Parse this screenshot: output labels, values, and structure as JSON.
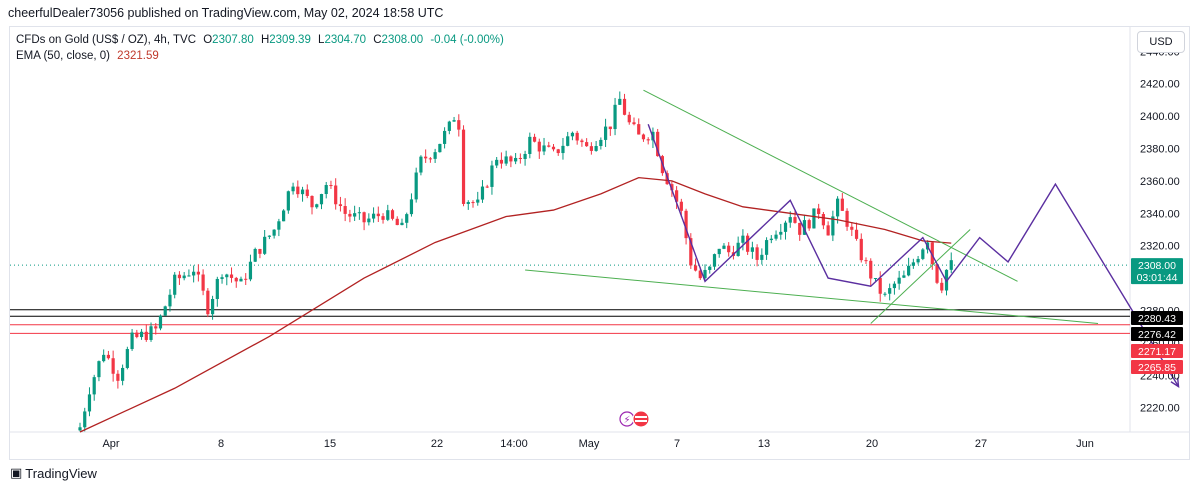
{
  "header": {
    "caption": "cheerfulDealer73056 published on TradingView.com, May 02, 2024 18:58 UTC"
  },
  "legend": {
    "symbol": "CFDs on Gold (US$ / OZ), 4h, TVC",
    "open_key": "O",
    "open": "2307.80",
    "high_key": "H",
    "high": "2309.39",
    "low_key": "L",
    "low": "2304.70",
    "close_key": "C",
    "close": "2308.00",
    "change": "-0.04 (-0.00%)",
    "ema_label": "EMA (50, close, 0)",
    "ema_value": "2321.59"
  },
  "price_axis": {
    "currency": "USD"
  },
  "colors": {
    "up": "#089981",
    "down": "#f23645",
    "ema": "#b22222",
    "trendline": "#4caf50",
    "projection": "#5b2fa0",
    "level_black": "#000000",
    "level_red": "#f23645",
    "price_badge": "#089981"
  },
  "chart_data": {
    "type": "candlestick",
    "symbol": "CFDs on Gold (US$ / OZ)",
    "interval": "4h",
    "ylim": [
      2205,
      2455
    ],
    "y_ticks": [
      2220,
      2240,
      2260,
      2280,
      2300,
      2320,
      2340,
      2360,
      2380,
      2400,
      2420,
      2440
    ],
    "x_ticks": [
      "Apr",
      "8",
      "15",
      "22",
      "14:00",
      "May",
      "7",
      "13",
      "20",
      "27",
      "Jun"
    ],
    "current_price": "2308.00",
    "countdown": "03:01:44",
    "levels": [
      {
        "value": 2280.43,
        "label": "2280.43",
        "color": "black"
      },
      {
        "value": 2276.42,
        "label": "2276.42",
        "color": "black"
      },
      {
        "value": 2271.17,
        "label": "2271.17",
        "color": "red"
      },
      {
        "value": 2265.85,
        "label": "2265.85",
        "color": "red"
      }
    ],
    "waypoints": [
      [
        0,
        2208
      ],
      [
        2,
        2232
      ],
      [
        5,
        2255
      ],
      [
        8,
        2240
      ],
      [
        11,
        2262
      ],
      [
        16,
        2268
      ],
      [
        20,
        2298
      ],
      [
        24,
        2306
      ],
      [
        27,
        2282
      ],
      [
        30,
        2305
      ],
      [
        34,
        2296
      ],
      [
        37,
        2315
      ],
      [
        41,
        2330
      ],
      [
        45,
        2360
      ],
      [
        49,
        2345
      ],
      [
        52,
        2358
      ],
      [
        56,
        2340
      ],
      [
        60,
        2335
      ],
      [
        64,
        2340
      ],
      [
        68,
        2330
      ],
      [
        72,
        2372
      ],
      [
        75,
        2380
      ],
      [
        78,
        2393
      ],
      [
        79,
        2400
      ],
      [
        80,
        2395
      ],
      [
        81,
        2350
      ],
      [
        84,
        2345
      ],
      [
        88,
        2375
      ],
      [
        92,
        2370
      ],
      [
        95,
        2385
      ],
      [
        100,
        2376
      ],
      [
        104,
        2390
      ],
      [
        107,
        2380
      ],
      [
        112,
        2395
      ],
      [
        114,
        2410
      ],
      [
        116,
        2395
      ],
      [
        118,
        2387
      ],
      [
        121,
        2390
      ],
      [
        123,
        2368
      ],
      [
        125,
        2355
      ],
      [
        127,
        2340
      ],
      [
        129,
        2310
      ],
      [
        131,
        2300
      ],
      [
        133,
        2305
      ],
      [
        135,
        2320
      ],
      [
        137,
        2316
      ],
      [
        140,
        2322
      ],
      [
        143,
        2312
      ],
      [
        146,
        2328
      ],
      [
        148,
        2333
      ],
      [
        150,
        2340
      ],
      [
        152,
        2330
      ],
      [
        154,
        2335
      ],
      [
        156,
        2342
      ],
      [
        158,
        2330
      ],
      [
        160,
        2345
      ],
      [
        162,
        2335
      ],
      [
        164,
        2320
      ],
      [
        166,
        2308
      ],
      [
        168,
        2296
      ],
      [
        170,
        2288
      ],
      [
        172,
        2296
      ],
      [
        174,
        2300
      ],
      [
        176,
        2310
      ],
      [
        178,
        2320
      ],
      [
        179,
        2325
      ],
      [
        180,
        2310
      ],
      [
        181,
        2300
      ],
      [
        182,
        2296
      ],
      [
        183,
        2305
      ],
      [
        184,
        2308
      ]
    ],
    "ema_points": [
      [
        0,
        2205
      ],
      [
        20,
        2232
      ],
      [
        40,
        2264
      ],
      [
        60,
        2300
      ],
      [
        75,
        2322
      ],
      [
        90,
        2338
      ],
      [
        100,
        2342
      ],
      [
        110,
        2352
      ],
      [
        118,
        2362
      ],
      [
        125,
        2360
      ],
      [
        132,
        2352
      ],
      [
        140,
        2344
      ],
      [
        150,
        2340
      ],
      [
        160,
        2336
      ],
      [
        170,
        2330
      ],
      [
        178,
        2323
      ],
      [
        184,
        2321.59
      ]
    ],
    "projection_path": [
      [
        120,
        2395
      ],
      [
        132,
        2298
      ],
      [
        150,
        2348
      ],
      [
        158,
        2300
      ],
      [
        167,
        2295
      ],
      [
        178,
        2325
      ],
      [
        183,
        2298
      ],
      [
        190,
        2325
      ],
      [
        196,
        2310
      ],
      [
        206,
        2358
      ],
      [
        232,
        2233
      ]
    ],
    "trendlines": [
      {
        "from": [
          119,
          2416
        ],
        "to": [
          198,
          2298
        ]
      },
      {
        "from": [
          94,
          2305
        ],
        "to": [
          215,
          2272
        ]
      },
      {
        "from": [
          167,
          2272
        ],
        "to": [
          188,
          2330
        ]
      }
    ]
  }
}
